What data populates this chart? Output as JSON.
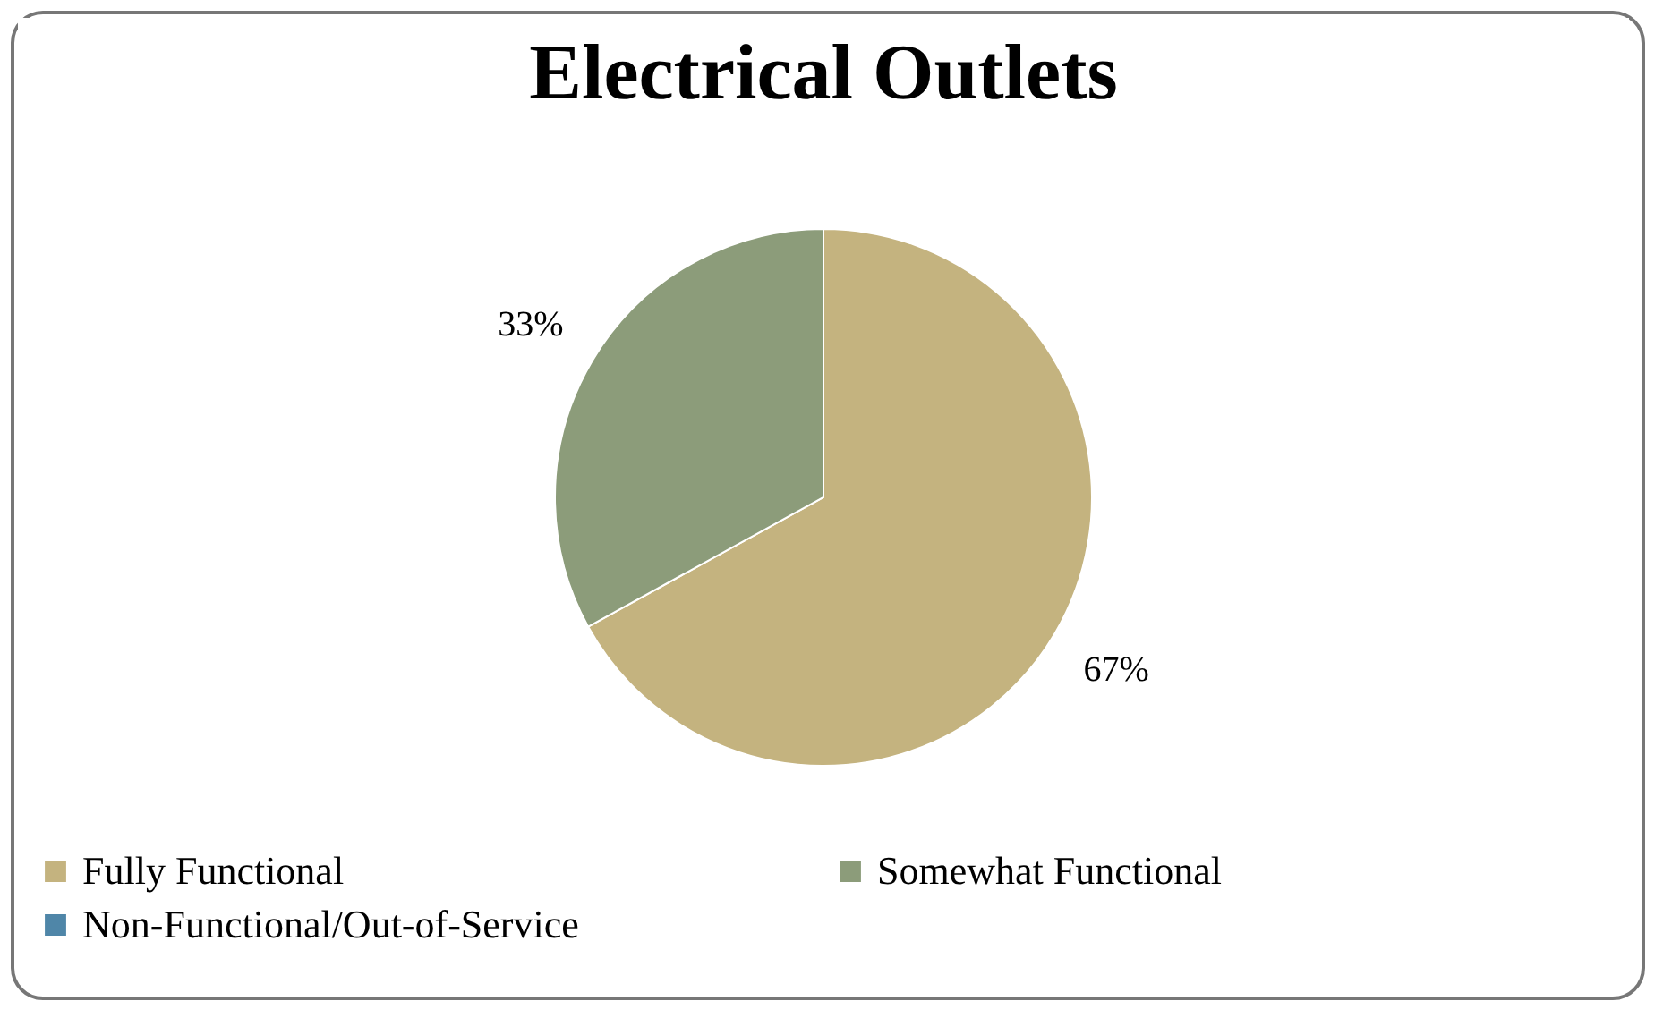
{
  "chart_data": {
    "type": "pie",
    "title": "Electrical Outlets",
    "categories": [
      "Fully Functional",
      "Somewhat Functional",
      "Non-Functional/Out-of-Service"
    ],
    "values": [
      67,
      33,
      0
    ],
    "colors": [
      "#c4b37f",
      "#8c9c7a",
      "#4f86a8"
    ],
    "value_labels": [
      "67%",
      "33%",
      null
    ],
    "legend": "bottom"
  }
}
